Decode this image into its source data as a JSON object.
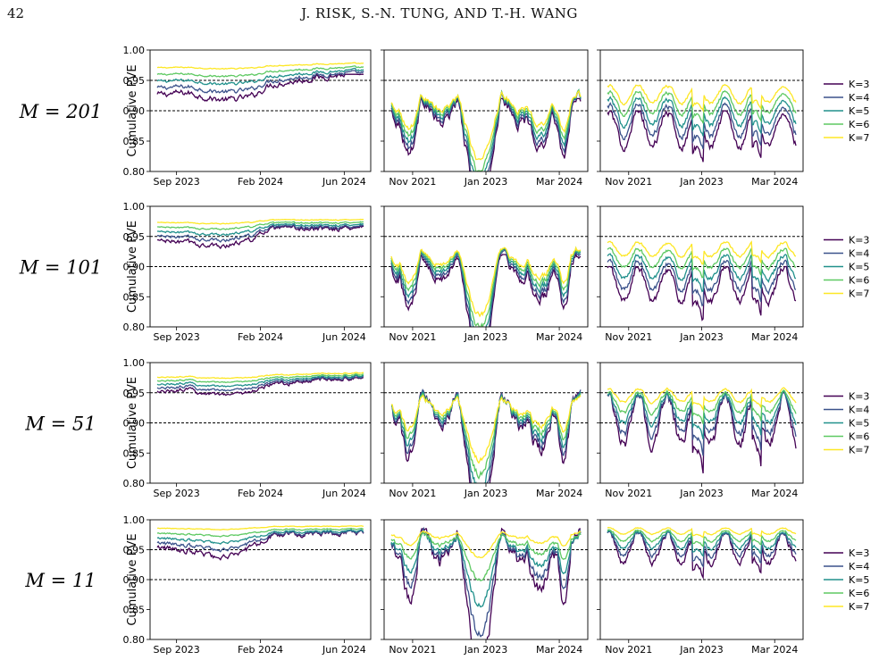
{
  "page": {
    "page_number": "42",
    "running_head": "J. RISK, S.-N. TUNG, AND T.-H. WANG"
  },
  "figure": {
    "ylabel": "Cumulative PVE",
    "yticks": [
      "0.80",
      "0.85",
      "0.90",
      "0.95",
      "1.00"
    ],
    "ylim": [
      0.8,
      1.0
    ],
    "reference_lines": [
      0.9,
      0.95
    ],
    "legend": [
      "K=3",
      "K=4",
      "K=5",
      "K=6",
      "K=7"
    ],
    "colors": [
      "#440154",
      "#3b528b",
      "#21918c",
      "#5ec962",
      "#fde725"
    ],
    "column_xticks": [
      [
        "Sep 2023",
        "Feb 2024",
        "Jun 2024"
      ],
      [
        "Nov 2021",
        "Jan 2023",
        "Mar 2024"
      ],
      [
        "Nov 2021",
        "Jan 2023",
        "Mar 2024"
      ]
    ],
    "row_labels": [
      "M = 201",
      "M = 101",
      "M = 51",
      "M = 11"
    ]
  },
  "chart_data": {
    "type": "line",
    "ylabel": "Cumulative PVE",
    "ylim": [
      0.8,
      1.0
    ],
    "series_names": [
      "K=3",
      "K=4",
      "K=5",
      "K=6",
      "K=7"
    ],
    "panels": [
      {
        "row": "M = 201",
        "col": 1,
        "x_ticks": [
          "Sep 2023",
          "Feb 2024",
          "Jun 2024"
        ],
        "k3_range": [
          0.885,
          0.96
        ],
        "k7_range": [
          0.955,
          0.985
        ],
        "shape": "stable"
      },
      {
        "row": "M = 201",
        "col": 2,
        "x_ticks": [
          "Nov 2021",
          "Jan 2023",
          "Mar 2024"
        ],
        "k3_range": [
          0.78,
          0.92
        ],
        "k7_range": [
          0.8,
          0.965
        ],
        "shape": "deep-dip"
      },
      {
        "row": "M = 201",
        "col": 3,
        "x_ticks": [
          "Nov 2021",
          "Jan 2023",
          "Mar 2024"
        ],
        "k3_range": [
          0.8,
          0.9
        ],
        "k7_range": [
          0.87,
          0.965
        ],
        "shape": "oscillating"
      },
      {
        "row": "M = 101",
        "col": 1,
        "x_ticks": [
          "Sep 2023",
          "Feb 2024",
          "Jun 2024"
        ],
        "k3_range": [
          0.91,
          0.97
        ],
        "k7_range": [
          0.96,
          0.985
        ],
        "shape": "stable"
      },
      {
        "row": "M = 101",
        "col": 2,
        "x_ticks": [
          "Nov 2021",
          "Jan 2023",
          "Mar 2024"
        ],
        "k3_range": [
          0.78,
          0.92
        ],
        "k7_range": [
          0.8,
          0.97
        ],
        "shape": "deep-dip"
      },
      {
        "row": "M = 101",
        "col": 3,
        "x_ticks": [
          "Nov 2021",
          "Jan 2023",
          "Mar 2024"
        ],
        "k3_range": [
          0.8,
          0.9
        ],
        "k7_range": [
          0.88,
          0.96
        ],
        "shape": "oscillating"
      },
      {
        "row": "M = 51",
        "col": 1,
        "x_ticks": [
          "Sep 2023",
          "Feb 2024",
          "Jun 2024"
        ],
        "k3_range": [
          0.925,
          0.975
        ],
        "k7_range": [
          0.96,
          0.99
        ],
        "shape": "stable"
      },
      {
        "row": "M = 51",
        "col": 2,
        "x_ticks": [
          "Nov 2021",
          "Jan 2023",
          "Mar 2024"
        ],
        "k3_range": [
          0.78,
          0.95
        ],
        "k7_range": [
          0.82,
          0.98
        ],
        "shape": "deep-dip"
      },
      {
        "row": "M = 51",
        "col": 3,
        "x_ticks": [
          "Nov 2021",
          "Jan 2023",
          "Mar 2024"
        ],
        "k3_range": [
          0.8,
          0.95
        ],
        "k7_range": [
          0.9,
          0.975
        ],
        "shape": "oscillating"
      },
      {
        "row": "M = 11",
        "col": 1,
        "x_ticks": [
          "Sep 2023",
          "Feb 2024",
          "Jun 2024"
        ],
        "k3_range": [
          0.91,
          0.985
        ],
        "k7_range": [
          0.975,
          0.995
        ],
        "shape": "stable"
      },
      {
        "row": "M = 11",
        "col": 2,
        "x_ticks": [
          "Nov 2021",
          "Jan 2023",
          "Mar 2024"
        ],
        "k3_range": [
          0.8,
          0.985
        ],
        "k7_range": [
          0.93,
          0.995
        ],
        "shape": "deep-dip"
      },
      {
        "row": "M = 11",
        "col": 3,
        "x_ticks": [
          "Nov 2021",
          "Jan 2023",
          "Mar 2024"
        ],
        "k3_range": [
          0.89,
          0.98
        ],
        "k7_range": [
          0.96,
          0.995
        ],
        "shape": "oscillating"
      }
    ]
  }
}
